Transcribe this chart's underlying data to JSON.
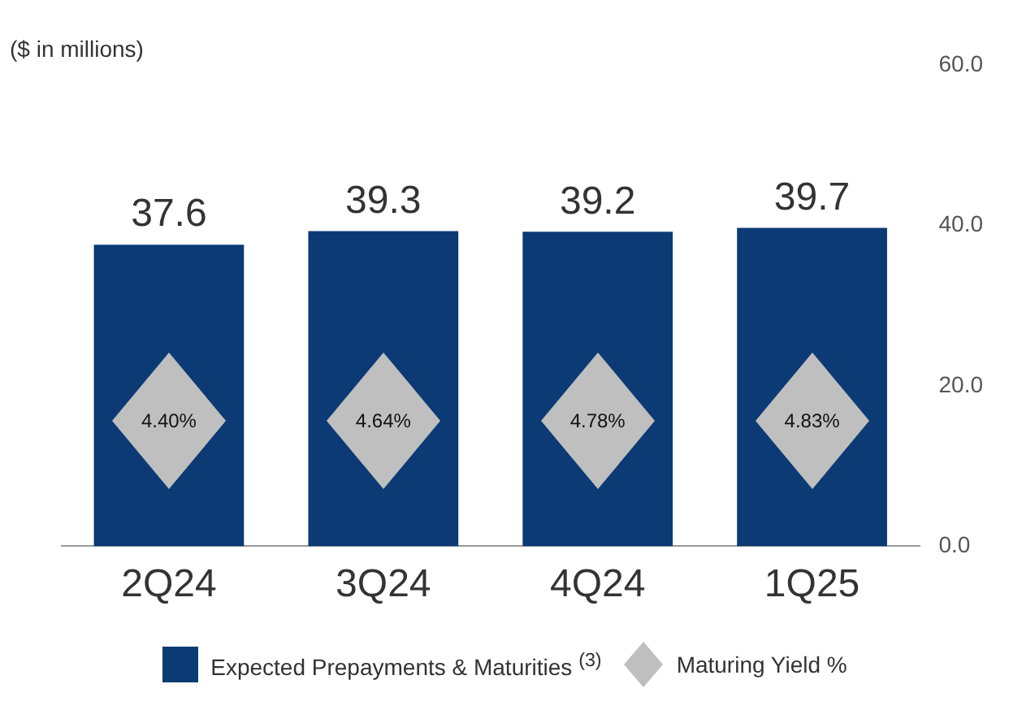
{
  "chart_data": {
    "type": "bar",
    "ylabel": "($ in millions)",
    "categories": [
      "2Q24",
      "3Q24",
      "4Q24",
      "1Q25"
    ],
    "series": [
      {
        "name": "Expected Prepayments & Maturities $^{(3)}$",
        "color": "#0b3a74",
        "values": [
          37.6,
          39.3,
          39.2,
          39.7
        ],
        "value_labels": [
          "37.6",
          "39.3",
          "39.2",
          "39.7"
        ]
      }
    ],
    "annotations": [
      "4.40%",
      "4.64%",
      "4.78%",
      "4.83%",
      "Maturing Yield %"
    ],
    "ylim": [
      0,
      60
    ],
    "yticks": [
      {
        "value": 0,
        "label": "0.0"
      },
      {
        "value": 20,
        "label": "20.0"
      },
      {
        "value": 40,
        "label": "40.0"
      },
      {
        "value": 60,
        "label": "60.0"
      }
    ],
    "grid": false,
    "legend": "bottom"
  }
}
